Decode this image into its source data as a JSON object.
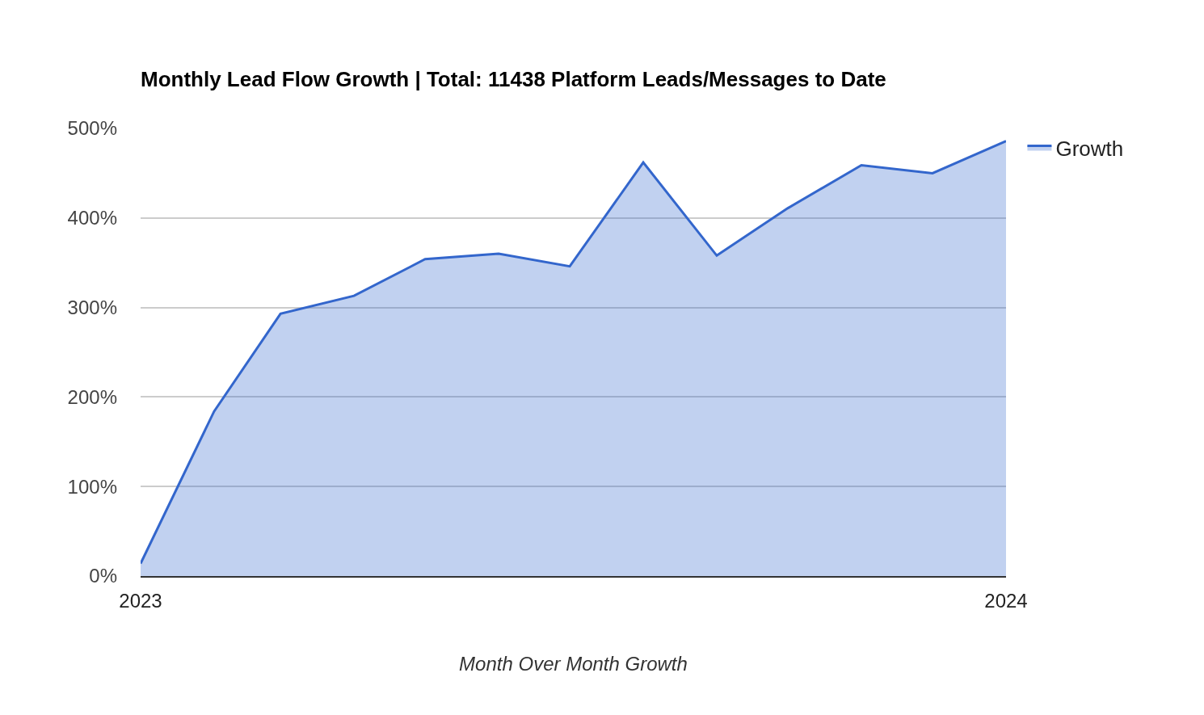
{
  "chart_data": {
    "type": "area",
    "title": "Monthly Lead Flow Growth | Total: 11438 Platform Leads/Messages to Date",
    "xlabel": "Month Over Month Growth",
    "x": [
      "2023-01",
      "2023-02",
      "2023-03",
      "2023-04",
      "2023-05",
      "2023-06",
      "2023-07",
      "2023-08",
      "2023-09",
      "2023-10",
      "2023-11",
      "2023-12",
      "2024-01"
    ],
    "series": [
      {
        "name": "Growth",
        "color": "#3366cc",
        "values": [
          14,
          184,
          293,
          313,
          354,
          360,
          346,
          462,
          358,
          411,
          459,
          450,
          486
        ]
      }
    ],
    "xlim": [
      "2023-01",
      "2024-01"
    ],
    "xticks": [
      {
        "value": "2023-01",
        "label": "2023"
      },
      {
        "value": "2024-01",
        "label": "2024"
      }
    ],
    "ylim": [
      0,
      500
    ],
    "yticks": [
      {
        "value": 0,
        "label": "0%"
      },
      {
        "value": 100,
        "label": "100%"
      },
      {
        "value": 200,
        "label": "200%"
      },
      {
        "value": 300,
        "label": "300%"
      },
      {
        "value": 400,
        "label": "400%"
      },
      {
        "value": 500,
        "label": "500%"
      }
    ],
    "grid": "y",
    "legend": "top right"
  }
}
